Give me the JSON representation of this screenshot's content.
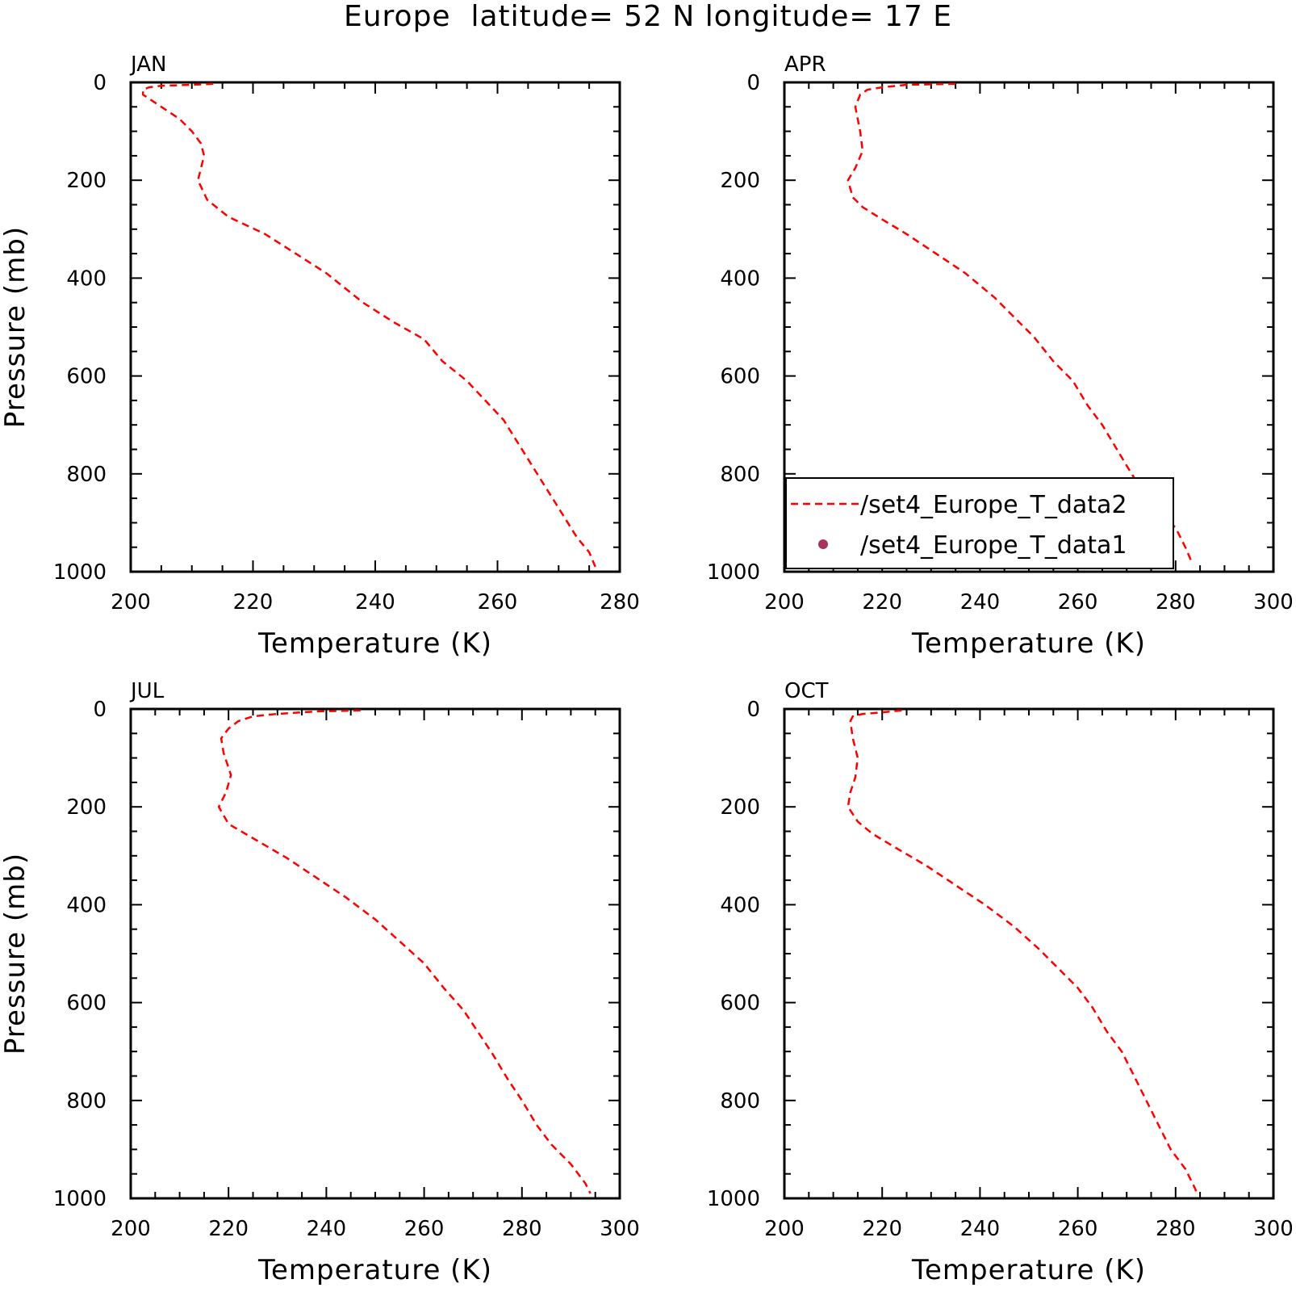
{
  "figure": {
    "title": "Europe  latitude= 52 N longitude= 17 E",
    "series_color": "#ff0000",
    "marker_color": "#a8325e"
  },
  "legend": {
    "entries": [
      {
        "label": "/set4_Europe_T_data2",
        "style": "dashed-line",
        "color": "#ff0000"
      },
      {
        "label": "/set4_Europe_T_data1",
        "style": "dot",
        "color": "#a8325e"
      }
    ],
    "placement": "lower-right of APR panel"
  },
  "chart_data": [
    {
      "type": "line",
      "title": "JAN",
      "xlabel": "Temperature (K)",
      "ylabel": "Pressure (mb)",
      "xlim": [
        200,
        280
      ],
      "ylim": [
        1000,
        0
      ],
      "y_reversed": true,
      "xticks": [
        200,
        220,
        240,
        260,
        280
      ],
      "yticks": [
        0,
        200,
        400,
        600,
        800,
        1000
      ],
      "series": [
        {
          "name": "/set4_Europe_T_data2",
          "style": "dashed",
          "points": [
            [
              213.5,
              3
            ],
            [
              210,
              5
            ],
            [
              205,
              7
            ],
            [
              203,
              10
            ],
            [
              202,
              15
            ],
            [
              202,
              25
            ],
            [
              205,
              50
            ],
            [
              208,
              75
            ],
            [
              210,
              100
            ],
            [
              211.5,
              125
            ],
            [
              212,
              150
            ],
            [
              211.5,
              175
            ],
            [
              211,
              200
            ],
            [
              212.5,
              240
            ],
            [
              216,
              275
            ],
            [
              222,
              310
            ],
            [
              227,
              350
            ],
            [
              232,
              390
            ],
            [
              238,
              450
            ],
            [
              243,
              490
            ],
            [
              248,
              525
            ],
            [
              251,
              570
            ],
            [
              255,
              610
            ],
            [
              258,
              650
            ],
            [
              261,
              690
            ],
            [
              263,
              730
            ],
            [
              265,
              770
            ],
            [
              267,
              810
            ],
            [
              269,
              850
            ],
            [
              271,
              890
            ],
            [
              273,
              930
            ],
            [
              275,
              960
            ],
            [
              276,
              990
            ]
          ]
        }
      ]
    },
    {
      "type": "line",
      "title": "APR",
      "xlabel": "Temperature (K)",
      "ylabel": "",
      "xlim": [
        200,
        300
      ],
      "ylim": [
        1000,
        0
      ],
      "y_reversed": true,
      "xticks": [
        200,
        220,
        240,
        260,
        280,
        300
      ],
      "yticks": [
        0,
        200,
        400,
        600,
        800,
        1000
      ],
      "series": [
        {
          "name": "/set4_Europe_T_data2",
          "style": "dashed",
          "points": [
            [
              235,
              3
            ],
            [
              225,
              5
            ],
            [
              220,
              10
            ],
            [
              217,
              15
            ],
            [
              215.5,
              25
            ],
            [
              214.5,
              50
            ],
            [
              215,
              75
            ],
            [
              215.5,
              100
            ],
            [
              216,
              140
            ],
            [
              214.5,
              175
            ],
            [
              213,
              200
            ],
            [
              214,
              235
            ],
            [
              216,
              255
            ],
            [
              220,
              280
            ],
            [
              225,
              310
            ],
            [
              231,
              350
            ],
            [
              237,
              390
            ],
            [
              243,
              440
            ],
            [
              247,
              480
            ],
            [
              251,
              520
            ],
            [
              255,
              570
            ],
            [
              259,
              610
            ],
            [
              262,
              660
            ],
            [
              265,
              700
            ],
            [
              268,
              750
            ],
            [
              271,
              800
            ],
            [
              274,
              845
            ],
            [
              277,
              880
            ],
            [
              280,
              910
            ],
            [
              282,
              950
            ],
            [
              283.5,
              985
            ]
          ]
        }
      ]
    },
    {
      "type": "line",
      "title": "JUL",
      "xlabel": "Temperature (K)",
      "ylabel": "Pressure (mb)",
      "xlim": [
        200,
        300
      ],
      "ylim": [
        1000,
        0
      ],
      "y_reversed": true,
      "xticks": [
        200,
        220,
        240,
        260,
        280,
        300
      ],
      "yticks": [
        0,
        200,
        400,
        600,
        800,
        1000
      ],
      "series": [
        {
          "name": "/set4_Europe_T_data2",
          "style": "dashed",
          "points": [
            [
              247,
              3
            ],
            [
              238,
              5
            ],
            [
              230,
              10
            ],
            [
              225,
              15
            ],
            [
              222,
              25
            ],
            [
              220,
              40
            ],
            [
              218.5,
              60
            ],
            [
              219,
              90
            ],
            [
              220.5,
              135
            ],
            [
              219.5,
              170
            ],
            [
              218,
              200
            ],
            [
              220,
              235
            ],
            [
              226,
              270
            ],
            [
              232,
              305
            ],
            [
              238,
              345
            ],
            [
              244,
              385
            ],
            [
              250,
              430
            ],
            [
              255,
              475
            ],
            [
              260,
              520
            ],
            [
              264,
              570
            ],
            [
              268,
              615
            ],
            [
              271,
              660
            ],
            [
              274,
              705
            ],
            [
              277,
              755
            ],
            [
              280,
              800
            ],
            [
              283,
              850
            ],
            [
              286,
              890
            ],
            [
              290,
              930
            ],
            [
              293,
              970
            ],
            [
              294,
              990
            ]
          ]
        }
      ]
    },
    {
      "type": "line",
      "title": "OCT",
      "xlabel": "Temperature (K)",
      "ylabel": "",
      "xlim": [
        200,
        300
      ],
      "ylim": [
        1000,
        0
      ],
      "y_reversed": true,
      "xticks": [
        200,
        220,
        240,
        260,
        280,
        300
      ],
      "yticks": [
        0,
        200,
        400,
        600,
        800,
        1000
      ],
      "series": [
        {
          "name": "/set4_Europe_T_data2",
          "style": "dashed",
          "points": [
            [
              224,
              3
            ],
            [
              220,
              7
            ],
            [
              216,
              10
            ],
            [
              214,
              15
            ],
            [
              213.5,
              25
            ],
            [
              214,
              60
            ],
            [
              215,
              100
            ],
            [
              214.5,
              140
            ],
            [
              213.5,
              170
            ],
            [
              213,
              200
            ],
            [
              215,
              230
            ],
            [
              218,
              255
            ],
            [
              223,
              285
            ],
            [
              229,
              320
            ],
            [
              235,
              360
            ],
            [
              241,
              400
            ],
            [
              247,
              445
            ],
            [
              252,
              490
            ],
            [
              256,
              530
            ],
            [
              260,
              570
            ],
            [
              263,
              610
            ],
            [
              266,
              660
            ],
            [
              269,
              700
            ],
            [
              271,
              740
            ],
            [
              273,
              780
            ],
            [
              275,
              820
            ],
            [
              277,
              860
            ],
            [
              279,
              900
            ],
            [
              282,
              940
            ],
            [
              284,
              980
            ],
            [
              284.5,
              995
            ]
          ]
        }
      ]
    }
  ]
}
